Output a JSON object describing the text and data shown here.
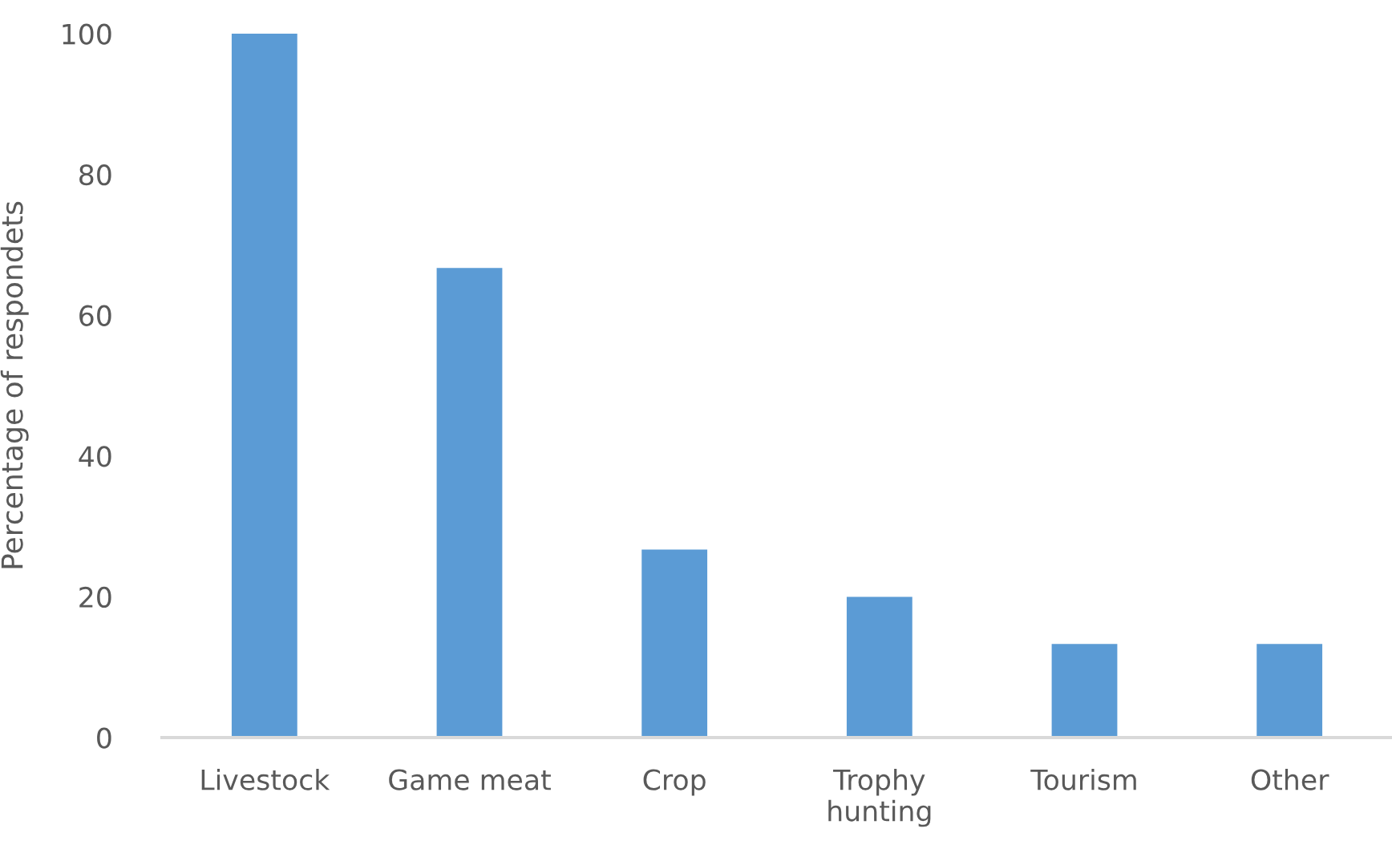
{
  "chart_data": {
    "type": "bar",
    "ylabel": "Percentage of respondets",
    "categories": [
      "Livestock",
      "Game meat",
      "Crop",
      "Trophy\nhunting",
      "Tourism",
      "Other"
    ],
    "values": [
      100,
      66.7,
      26.7,
      20,
      13.3,
      13.3
    ],
    "color": "#5b9bd5",
    "ylim": [
      0,
      100
    ],
    "yticks": [
      0,
      20,
      40,
      60,
      80,
      100
    ],
    "grid": false
  }
}
